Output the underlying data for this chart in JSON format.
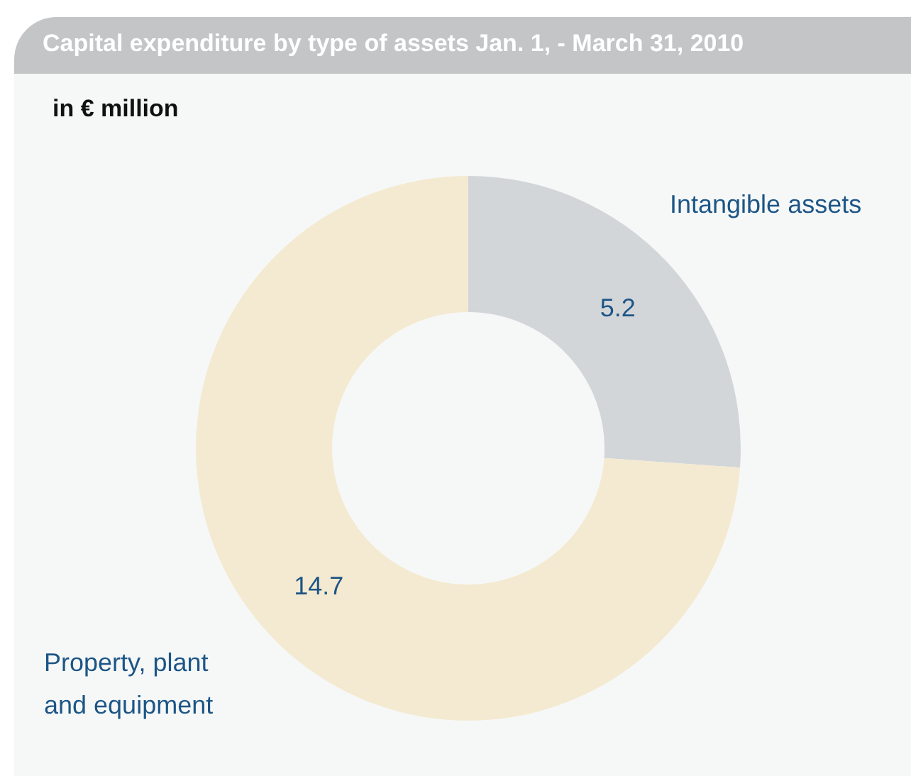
{
  "chart_data": {
    "type": "donut",
    "title": "Capital expenditure by type of assets Jan. 1, - March 31, 2010",
    "subtitle": "in € million",
    "categories": [
      "Intangible assets",
      "Property, plant and equipment"
    ],
    "values": [
      5.2,
      14.7
    ],
    "colors": [
      "#d3d6d9",
      "#f4ead1"
    ],
    "data_labels": true,
    "legend": false
  }
}
